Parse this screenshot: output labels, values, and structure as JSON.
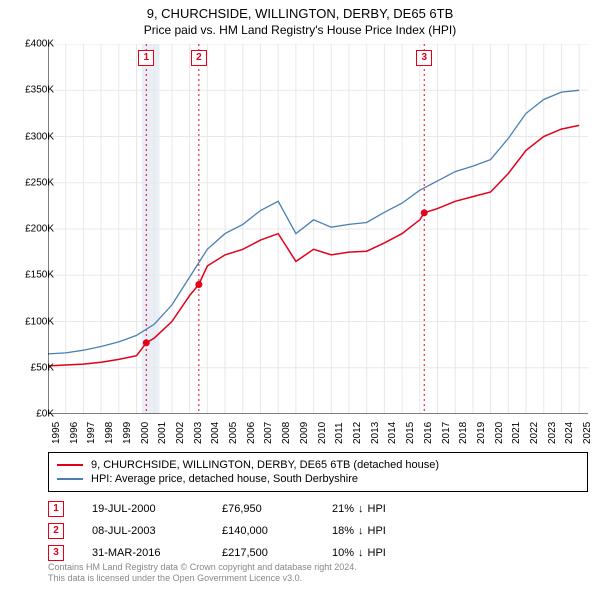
{
  "title": "9, CHURCHSIDE, WILLINGTON, DERBY, DE65 6TB",
  "subtitle": "Price paid vs. HM Land Registry's House Price Index (HPI)",
  "chart": {
    "type": "line",
    "background_color": "#ffffff",
    "grid_color": "#e8e8e8",
    "band_color": "#e9eef7",
    "xlim": [
      1995,
      2025.5
    ],
    "ylim": [
      0,
      400000
    ],
    "ytick_step": 50000,
    "ytick_labels": [
      "£0K",
      "£50K",
      "£100K",
      "£150K",
      "£200K",
      "£250K",
      "£300K",
      "£350K",
      "£400K"
    ],
    "xtick_step": 1,
    "xtick_labels": [
      "1995",
      "1996",
      "1997",
      "1998",
      "1999",
      "2000",
      "2001",
      "2002",
      "2003",
      "2004",
      "2005",
      "2006",
      "2007",
      "2008",
      "2009",
      "2010",
      "2011",
      "2012",
      "2013",
      "2014",
      "2015",
      "2016",
      "2017",
      "2018",
      "2019",
      "2020",
      "2021",
      "2022",
      "2023",
      "2024",
      "2025"
    ],
    "label_fontsize": 10,
    "series": [
      {
        "name": "property",
        "label": "9, CHURCHSIDE, WILLINGTON, DERBY, DE65 6TB (detached house)",
        "color": "#e2001a",
        "line_width": 1.5,
        "data": [
          [
            1995,
            52000
          ],
          [
            1996,
            53000
          ],
          [
            1997,
            54000
          ],
          [
            1998,
            56000
          ],
          [
            1999,
            59000
          ],
          [
            2000,
            63000
          ],
          [
            2000.55,
            76950
          ],
          [
            2001,
            82000
          ],
          [
            2002,
            100000
          ],
          [
            2003,
            128000
          ],
          [
            2003.52,
            140000
          ],
          [
            2004,
            160000
          ],
          [
            2005,
            172000
          ],
          [
            2006,
            178000
          ],
          [
            2007,
            188000
          ],
          [
            2008,
            195000
          ],
          [
            2009,
            165000
          ],
          [
            2010,
            178000
          ],
          [
            2011,
            172000
          ],
          [
            2012,
            175000
          ],
          [
            2013,
            176000
          ],
          [
            2014,
            185000
          ],
          [
            2015,
            195000
          ],
          [
            2016,
            210000
          ],
          [
            2016.25,
            217500
          ],
          [
            2017,
            222000
          ],
          [
            2018,
            230000
          ],
          [
            2019,
            235000
          ],
          [
            2020,
            240000
          ],
          [
            2021,
            260000
          ],
          [
            2022,
            285000
          ],
          [
            2023,
            300000
          ],
          [
            2024,
            308000
          ],
          [
            2025,
            312000
          ]
        ]
      },
      {
        "name": "hpi",
        "label": "HPI: Average price, detached house, South Derbyshire",
        "color": "#4a7fb5",
        "line_width": 1.3,
        "data": [
          [
            1995,
            65000
          ],
          [
            1996,
            66000
          ],
          [
            1997,
            69000
          ],
          [
            1998,
            73000
          ],
          [
            1999,
            78000
          ],
          [
            2000,
            85000
          ],
          [
            2001,
            97000
          ],
          [
            2002,
            118000
          ],
          [
            2003,
            148000
          ],
          [
            2004,
            178000
          ],
          [
            2005,
            195000
          ],
          [
            2006,
            205000
          ],
          [
            2007,
            220000
          ],
          [
            2008,
            230000
          ],
          [
            2009,
            195000
          ],
          [
            2010,
            210000
          ],
          [
            2011,
            202000
          ],
          [
            2012,
            205000
          ],
          [
            2013,
            207000
          ],
          [
            2014,
            218000
          ],
          [
            2015,
            228000
          ],
          [
            2016,
            242000
          ],
          [
            2017,
            252000
          ],
          [
            2018,
            262000
          ],
          [
            2019,
            268000
          ],
          [
            2020,
            275000
          ],
          [
            2021,
            298000
          ],
          [
            2022,
            325000
          ],
          [
            2023,
            340000
          ],
          [
            2024,
            348000
          ],
          [
            2025,
            350000
          ]
        ]
      }
    ],
    "markers": [
      {
        "n": "1",
        "x": 2000.55,
        "y": 76950,
        "color": "#e2001a",
        "line_color": "#e2001a"
      },
      {
        "n": "2",
        "x": 2003.52,
        "y": 140000,
        "color": "#e2001a",
        "line_color": "#e2001a"
      },
      {
        "n": "3",
        "x": 2016.25,
        "y": 217500,
        "color": "#e2001a",
        "line_color": "#e2001a"
      }
    ],
    "emphasis_band": {
      "xstart": 2000.3,
      "xend": 2001.3
    },
    "dotted_line_dash": "2,3"
  },
  "sales": [
    {
      "n": "1",
      "date": "19-JUL-2000",
      "price": "£76,950",
      "diff_pct": "21%",
      "diff_dir": "↓",
      "diff_suffix": "HPI",
      "color": "#e2001a"
    },
    {
      "n": "2",
      "date": "08-JUL-2003",
      "price": "£140,000",
      "diff_pct": "18%",
      "diff_dir": "↓",
      "diff_suffix": "HPI",
      "color": "#e2001a"
    },
    {
      "n": "3",
      "date": "31-MAR-2016",
      "price": "£217,500",
      "diff_pct": "10%",
      "diff_dir": "↓",
      "diff_suffix": "HPI",
      "color": "#e2001a"
    }
  ],
  "footer_line1": "Contains HM Land Registry data © Crown copyright and database right 2024.",
  "footer_line2": "This data is licensed under the Open Government Licence v3.0."
}
